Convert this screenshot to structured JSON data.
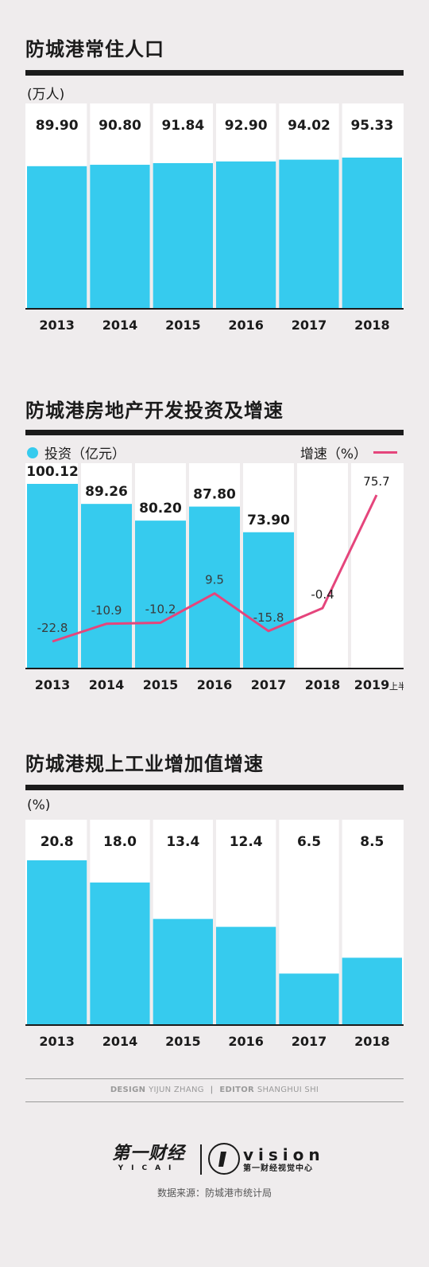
{
  "colors": {
    "bar": "#36cbee",
    "line": "#e5457c",
    "text": "#1b1b1b",
    "bg": "#efeced"
  },
  "credits": {
    "design_label": "DESIGN",
    "design_name": "YIJUN ZHANG",
    "editor_label": "EDITOR",
    "editor_name": "SHANGHUI SHI"
  },
  "logo": {
    "yicai_cn": "第一财经",
    "yicai_en": "YICAI",
    "vision_en": "vision",
    "vision_cn": "第一财经视觉中心"
  },
  "source": "数据来源：防城港市统计局",
  "chart_data": [
    {
      "type": "bar",
      "title": "防城港常住人口",
      "unit_label": "(万人)",
      "categories": [
        "2013",
        "2014",
        "2015",
        "2016",
        "2017",
        "2018"
      ],
      "values": [
        89.9,
        90.8,
        91.84,
        92.9,
        94.02,
        95.33
      ],
      "value_labels": [
        "89.90",
        "90.80",
        "91.84",
        "92.90",
        "94.02",
        "95.33"
      ],
      "ylim": [
        0,
        95.33
      ]
    },
    {
      "type": "bar",
      "title": "防城港房地产开发投资及增速",
      "categories": [
        "2013",
        "2014",
        "2015",
        "2016",
        "2017",
        "2018",
        "2019"
      ],
      "category_suffix": [
        "",
        "",
        "",
        "",
        "",
        "",
        "上半年"
      ],
      "series": [
        {
          "name": "投资（亿元）",
          "type": "bar",
          "values": [
            100.12,
            89.26,
            80.2,
            87.8,
            73.9,
            null,
            null
          ],
          "value_labels": [
            "100.12",
            "89.26",
            "80.20",
            "87.80",
            "73.90"
          ]
        },
        {
          "name": "增速（%）",
          "type": "line",
          "values": [
            -22.8,
            -10.9,
            -10.2,
            9.5,
            -15.8,
            -0.4,
            75.7
          ],
          "value_labels": [
            "-22.8",
            "-10.9",
            "-10.2",
            "9.5",
            "-15.8",
            "-0.4",
            "75.7"
          ]
        }
      ],
      "ylim": [
        0,
        100.12
      ]
    },
    {
      "type": "bar",
      "title": "防城港规上工业增加值增速",
      "unit_label": "(%)",
      "categories": [
        "2013",
        "2014",
        "2015",
        "2016",
        "2017",
        "2018"
      ],
      "values": [
        20.8,
        18.0,
        13.4,
        12.4,
        6.5,
        8.5
      ],
      "value_labels": [
        "20.8",
        "18.0",
        "13.4",
        "12.4",
        "6.5",
        "8.5"
      ],
      "ylim": [
        0,
        20.8
      ]
    }
  ]
}
